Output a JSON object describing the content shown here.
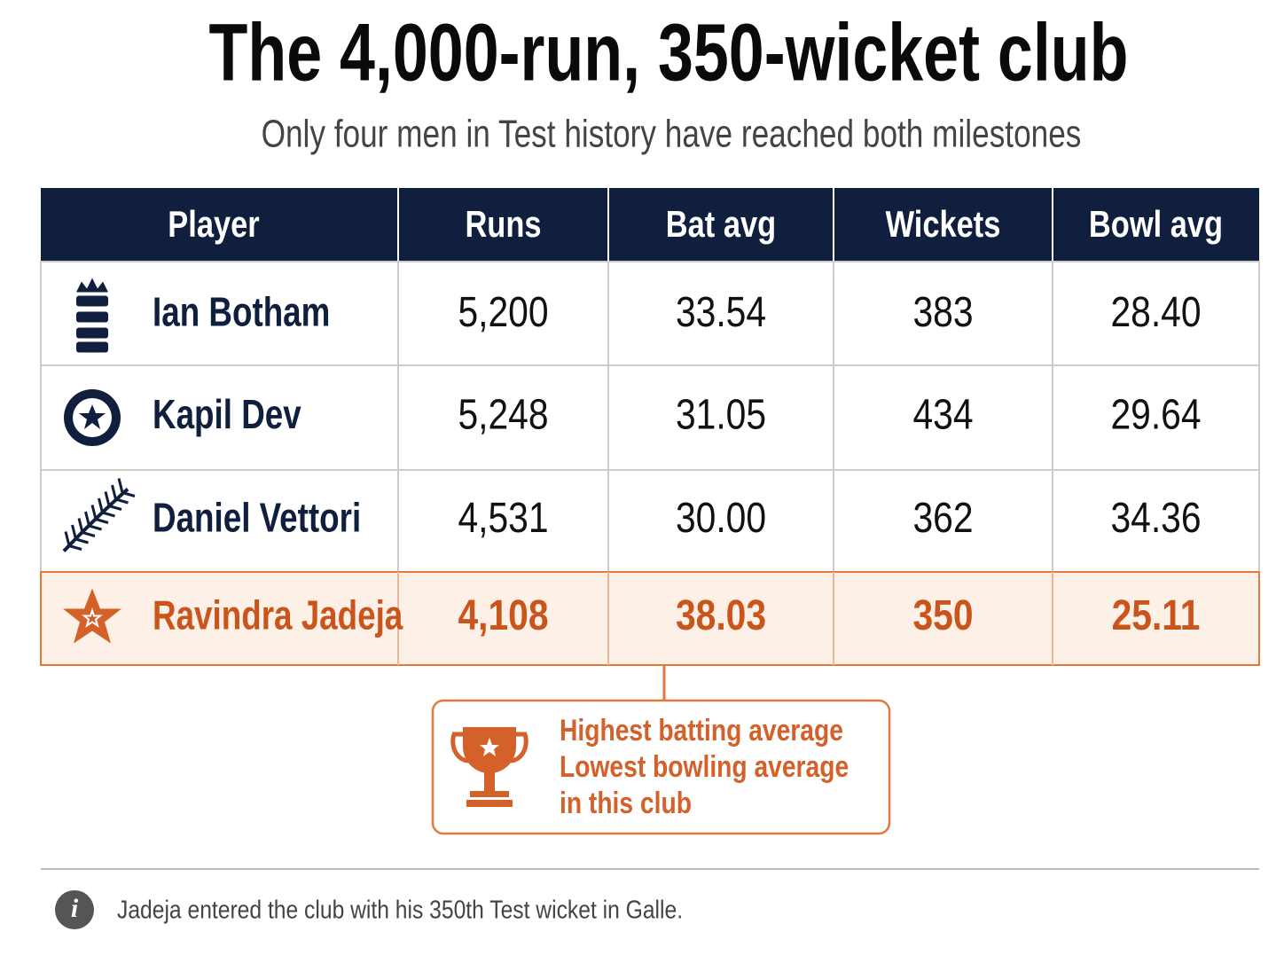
{
  "header": {
    "title": "The 4,000-run, 350-wicket club",
    "subtitle": "Only four men in Test history have reached both milestones"
  },
  "table": {
    "columns": [
      "Player",
      "Runs",
      "Bat avg",
      "Wickets",
      "Bowl avg"
    ],
    "rows": [
      [
        "Ian Botham",
        "5,200",
        "33.54",
        "383",
        "28.40"
      ],
      [
        "Kapil Dev",
        "5,248",
        "31.05",
        "434",
        "29.64"
      ],
      [
        "Daniel Vettori",
        "4,531",
        "30.00",
        "362",
        "34.36"
      ],
      [
        "Ravindra Jadeja",
        "4,108",
        "38.03",
        "350",
        "25.11"
      ]
    ]
  },
  "callout": {
    "lines": [
      "Highest batting average",
      "Lowest bowling average",
      "in this club"
    ]
  },
  "footnote": "Jadeja entered the club with his 350th Test wicket in Galle."
}
